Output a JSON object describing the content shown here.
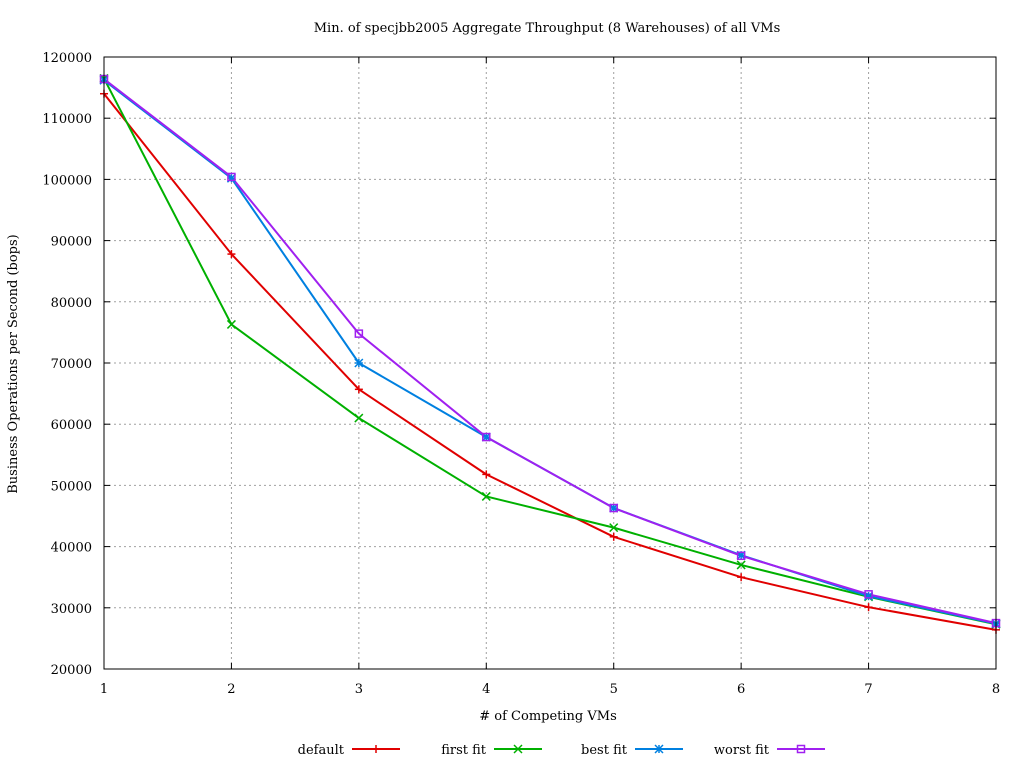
{
  "chart_data": {
    "type": "line",
    "title": "Min. of specjbb2005 Aggregate Throughput (8 Warehouses) of all VMs",
    "xlabel": "# of Competing VMs",
    "ylabel": "Business Operations per Second (bops)",
    "xlim": [
      1,
      8
    ],
    "ylim": [
      20000,
      120000
    ],
    "x_ticks": [
      1,
      2,
      3,
      4,
      5,
      6,
      7,
      8
    ],
    "y_ticks": [
      20000,
      30000,
      40000,
      50000,
      60000,
      70000,
      80000,
      90000,
      100000,
      110000,
      120000
    ],
    "grid": true,
    "legend_position": "bottom",
    "x": [
      1,
      2,
      3,
      4,
      5,
      6,
      7,
      8
    ],
    "series": [
      {
        "name": "default",
        "color": "#e00000",
        "marker": "plus",
        "values": [
          114000,
          87800,
          65700,
          51800,
          41600,
          35000,
          30100,
          26400
        ]
      },
      {
        "name": "first fit",
        "color": "#00b000",
        "marker": "cross",
        "values": [
          116500,
          76300,
          61000,
          48200,
          43100,
          37000,
          31800,
          27300
        ]
      },
      {
        "name": "best fit",
        "color": "#0080e0",
        "marker": "star",
        "values": [
          116200,
          100200,
          70000,
          57900,
          46300,
          38600,
          31900,
          27400
        ]
      },
      {
        "name": "worst fit",
        "color": "#a020f0",
        "marker": "open-square",
        "values": [
          116400,
          100400,
          74800,
          57900,
          46300,
          38500,
          32200,
          27500
        ]
      }
    ]
  }
}
